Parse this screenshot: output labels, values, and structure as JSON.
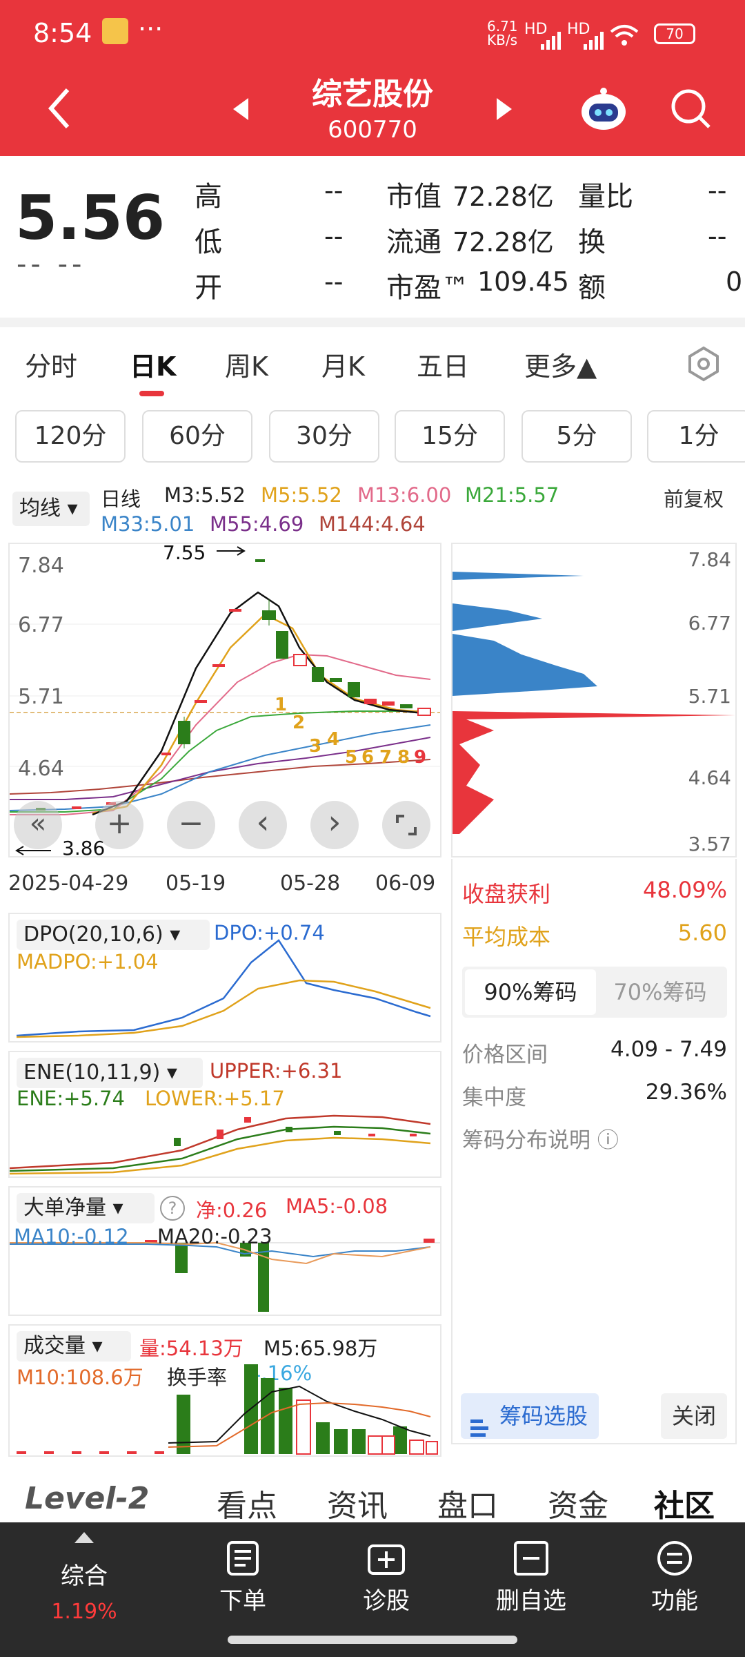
{
  "status_bar": {
    "time": "8:54",
    "speed": "6.71 KB/s",
    "signal1": "HD",
    "signal2": "HD",
    "battery": "70"
  },
  "header": {
    "title": "综艺股份",
    "code": "600770"
  },
  "quote": {
    "price": "5.56",
    "change": "-- --",
    "labels": [
      "高",
      "低",
      "开"
    ],
    "values": [
      "--",
      "--",
      "--"
    ],
    "mid_labels": [
      "市值",
      "流通",
      "市盈™"
    ],
    "mid_values": [
      "72.28亿",
      "72.28亿",
      "109.45"
    ],
    "right_labels": [
      "量比",
      "换",
      "额"
    ],
    "right_values": [
      "--",
      "--",
      "0"
    ]
  },
  "period_tabs": [
    "分时",
    "日K",
    "周K",
    "月K",
    "五日",
    "更多▲"
  ],
  "minute_tabs": [
    "120分",
    "60分",
    "30分",
    "15分",
    "5分",
    "1分"
  ],
  "ma_bar": {
    "type_select": "均线",
    "line_label": "日线",
    "fuquan": "前复权",
    "ma": [
      {
        "text": "M3:5.52",
        "color": "#222222"
      },
      {
        "text": "M5:5.52",
        "color": "#e0a21b"
      },
      {
        "text": "M13:6.00",
        "color": "#e26a8a"
      },
      {
        "text": "M21:5.57",
        "color": "#3aa83a"
      },
      {
        "text": "M33:5.01",
        "color": "#3a84c8"
      },
      {
        "text": "M55:4.69",
        "color": "#7a2f8a"
      },
      {
        "text": "M144:4.64",
        "color": "#b0453a"
      }
    ]
  },
  "kline": {
    "y_ticks": [
      "7.84",
      "6.77",
      "5.71",
      "4.64"
    ],
    "high_mark": "7.55",
    "low_mark": "3.86",
    "x_ticks": [
      "2025-04-29",
      "05-19",
      "05-28",
      "06-09"
    ],
    "controls": [
      "«",
      "+",
      "−",
      "‹",
      "›"
    ],
    "nines": [
      "1",
      "2",
      "3",
      "4",
      "5",
      "6",
      "7",
      "8",
      "9"
    ]
  },
  "chips": {
    "y_ticks": [
      "7.84",
      "6.77",
      "5.71",
      "4.64",
      "3.57"
    ],
    "profit_label": "收盘获利",
    "profit_value": "48.09%",
    "cost_label": "平均成本",
    "cost_value": "5.60",
    "tab_90": "90%筹码",
    "tab_70": "70%筹码",
    "range_label": "价格区间",
    "range_value": "4.09 - 7.49",
    "conc_label": "集中度",
    "conc_value": "29.36%",
    "explain": "筹码分布说明 ⓘ",
    "select_button": "筹码选股",
    "close_button": "关闭"
  },
  "dpo": {
    "name": "DPO(20,10,6)",
    "dpo": "DPO:+0.74",
    "madpo": "MADPO:+1.04"
  },
  "ene": {
    "name": "ENE(10,11,9)",
    "upper": "UPPER:+6.31",
    "ene": "ENE:+5.74",
    "lower": "LOWER:+5.17"
  },
  "bigorder": {
    "name": "大单净量",
    "net": "净:0.26",
    "ma5": "MA5:-0.08",
    "ma10": "MA10:-0.12",
    "ma20": "MA20:-0.23"
  },
  "volume": {
    "name": "成交量",
    "vol": "量:54.13万",
    "m5": "M5:65.98万",
    "m10": "M10:108.6万",
    "turnover_label": "换手率",
    "turnover": "4.16%"
  },
  "lower_tabs": [
    "Level-2",
    "看点",
    "资讯",
    "盘口",
    "资金",
    "社区"
  ],
  "bottom_nav": [
    {
      "label": "综合",
      "sub": "1.19%"
    },
    {
      "label": "下单"
    },
    {
      "label": "诊股"
    },
    {
      "label": "删自选"
    },
    {
      "label": "功能"
    }
  ],
  "colors": {
    "red": "#e8353c",
    "blue": "#3a84c8",
    "orange": "#e0a21b",
    "green": "#2b7d1a"
  }
}
